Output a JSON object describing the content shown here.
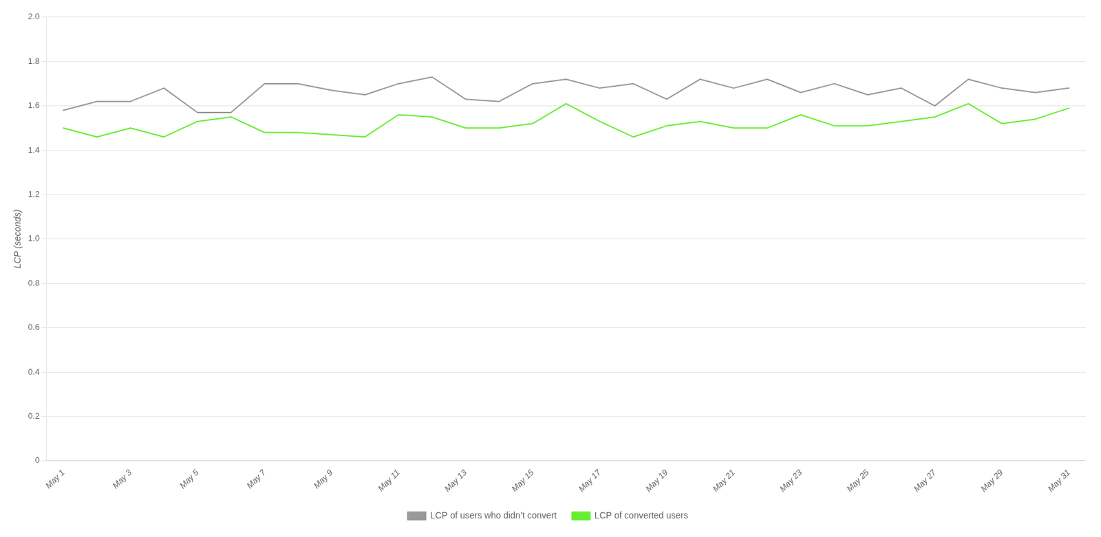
{
  "chart_data": {
    "type": "line",
    "ylabel": "LCP (seconds)",
    "categories": [
      "May 1",
      null,
      "May 3",
      null,
      "May 5",
      null,
      "May 7",
      null,
      "May 9",
      null,
      "May 11",
      null,
      "May 13",
      null,
      "May 15",
      null,
      "May 17",
      null,
      "May 19",
      null,
      "May 21",
      null,
      "May 23",
      null,
      "May 25",
      null,
      "May 27",
      null,
      "May 29",
      null,
      "May 31"
    ],
    "series": [
      {
        "name": "LCP of users who didn’t convert",
        "color": "#999999",
        "values": [
          1.58,
          1.62,
          1.62,
          1.68,
          1.57,
          1.57,
          1.7,
          1.7,
          1.67,
          1.65,
          1.7,
          1.73,
          1.63,
          1.62,
          1.7,
          1.72,
          1.68,
          1.7,
          1.63,
          1.72,
          1.68,
          1.72,
          1.66,
          1.7,
          1.65,
          1.68,
          1.6,
          1.72,
          1.68,
          1.66,
          1.68
        ]
      },
      {
        "name": "LCP of converted users",
        "color": "#66ee33",
        "values": [
          1.5,
          1.46,
          1.5,
          1.46,
          1.53,
          1.55,
          1.48,
          1.48,
          1.47,
          1.46,
          1.56,
          1.55,
          1.5,
          1.5,
          1.52,
          1.61,
          1.53,
          1.46,
          1.51,
          1.53,
          1.5,
          1.5,
          1.56,
          1.51,
          1.51,
          1.53,
          1.55,
          1.61,
          1.52,
          1.54,
          1.59
        ]
      }
    ],
    "ylim": [
      0,
      2.0
    ],
    "yticks": [
      0,
      0.2,
      0.4,
      0.6,
      0.8,
      {
        "value": 1.0,
        "label": "1.0"
      },
      1.2,
      1.4,
      1.6,
      1.8,
      {
        "value": 2.0,
        "label": "2.0"
      }
    ],
    "grid": "y",
    "legend": "bottom"
  }
}
